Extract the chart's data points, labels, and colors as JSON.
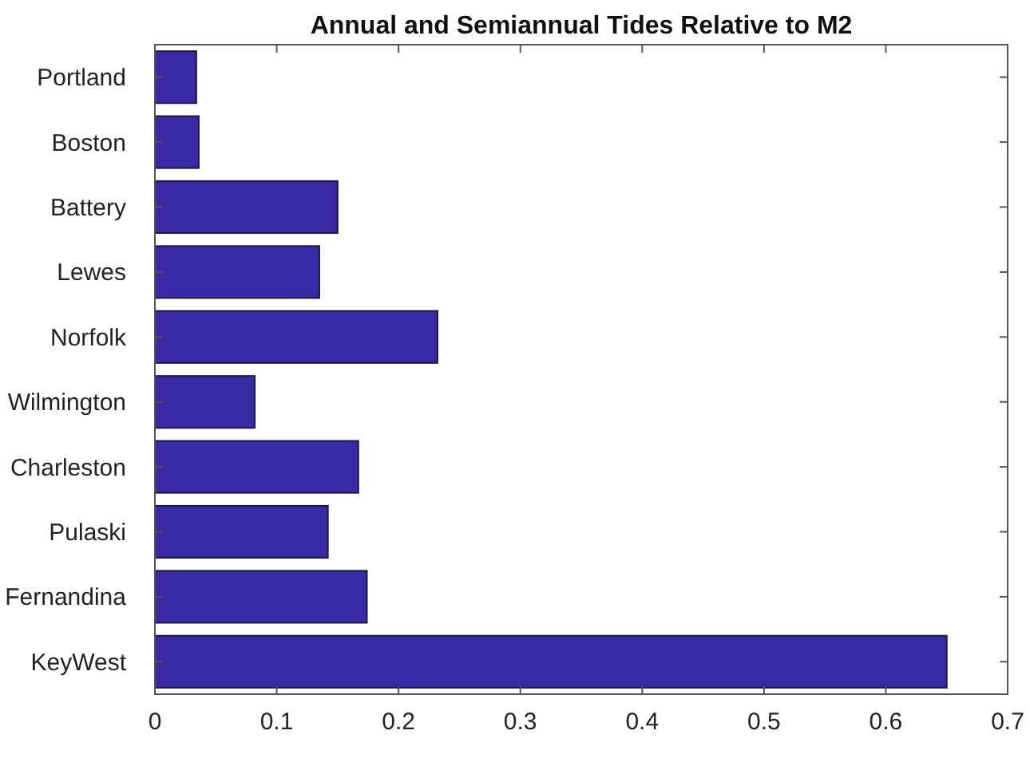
{
  "chart_data": {
    "type": "bar",
    "orientation": "horizontal",
    "title": "Annual and Semiannual Tides Relative to M2",
    "categories": [
      "Portland",
      "Boston",
      "Battery",
      "Lewes",
      "Norfolk",
      "Wilmington",
      "Charleston",
      "Pulaski",
      "Fernandina",
      "KeyWest"
    ],
    "values": [
      0.034,
      0.036,
      0.15,
      0.135,
      0.232,
      0.082,
      0.167,
      0.142,
      0.174,
      0.65
    ],
    "color": "#3b28a6",
    "xlim": [
      0,
      0.7
    ],
    "xticks": [
      0,
      0.1,
      0.2,
      0.3,
      0.4,
      0.5,
      0.6,
      0.7
    ],
    "grid": false
  }
}
